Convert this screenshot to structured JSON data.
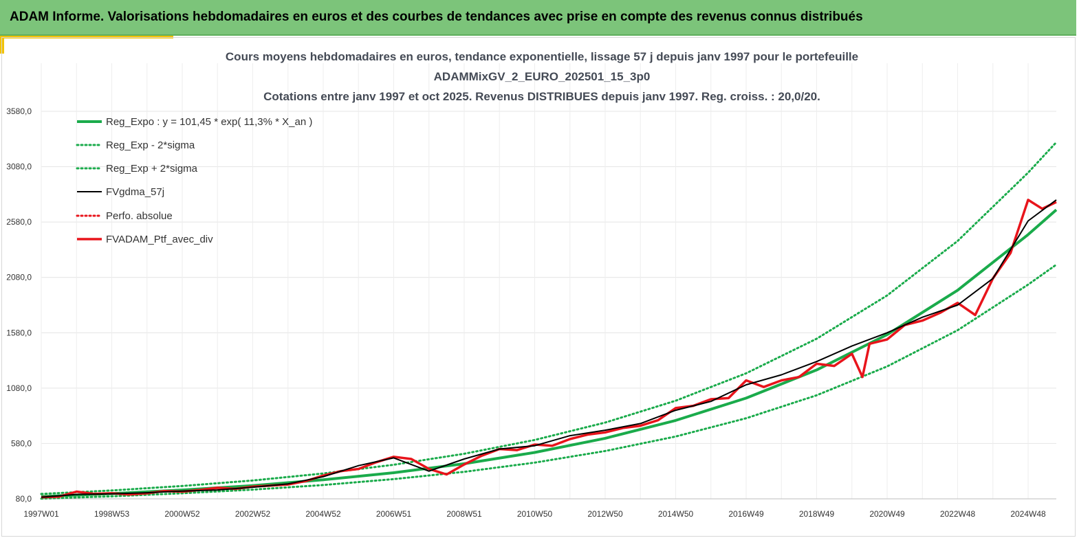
{
  "banner": {
    "title": "ADAM Informe. Valorisations hebdomadaires en euros et des courbes de tendances avec prise en compte des revenus connus distribués"
  },
  "colors": {
    "banner_bg": "#7cc47a",
    "accent": "#f2c200",
    "reg_expo": "#1aab4b",
    "portfolio": "#e8141b",
    "gdma": "#000000"
  },
  "chart_data": {
    "type": "line",
    "title_lines": [
      "Cours moyens hebdomadaires  en euros, tendance exponentielle, lissage 57 j depuis janv 1997 pour le portefeuille",
      "ADAMMixGV_2_EURO_202501_15_3p0",
      "Cotations  entre janv 1997 et oct 2025. Revenus DISTRIBUES depuis janv 1997. Reg. croiss. : 20,0/20."
    ],
    "xlabel": "",
    "ylabel": "",
    "xlim": [
      1997.0,
      2025.8
    ],
    "ylim": [
      80,
      3580
    ],
    "y_ticks": [
      80,
      580,
      1080,
      1580,
      2080,
      2580,
      3080,
      3580
    ],
    "y_tick_labels": [
      "80,0",
      "580,0",
      "1080,0",
      "1580,0",
      "2080,0",
      "2580,0",
      "3080,0",
      "3580,0"
    ],
    "x_ticks": [
      1997.0,
      1999.0,
      2001.0,
      2003.0,
      2005.0,
      2007.0,
      2009.0,
      2011.0,
      2013.0,
      2015.0,
      2017.0,
      2019.0,
      2021.0,
      2023.0,
      2025.0
    ],
    "x_tick_labels": [
      "1997W01",
      "1998W53",
      "2000W52",
      "2002W52",
      "2004W52",
      "2006W51",
      "2008W51",
      "2010W50",
      "2012W50",
      "2014W50",
      "2016W49",
      "2018W49",
      "2020W49",
      "2022W48",
      "2024W48"
    ],
    "grid": true,
    "legend_position": "top-left",
    "series": [
      {
        "name": "Reg_Expo : y = 101,45 * exp( 11,3% *  X_an )",
        "style": "solid-thick",
        "color": "#1aab4b",
        "x": [
          1997.0,
          1999.0,
          2001.0,
          2003.0,
          2005.0,
          2007.0,
          2009.0,
          2011.0,
          2013.0,
          2015.0,
          2017.0,
          2019.0,
          2021.0,
          2023.0,
          2025.0,
          2025.8
        ],
        "values": [
          101,
          127,
          160,
          200,
          252,
          316,
          397,
          499,
          627,
          788,
          990,
          1244,
          1563,
          1964,
          2467,
          2690
        ]
      },
      {
        "name": "Reg_Exp - 2*sigma",
        "style": "dotted",
        "color": "#1aab4b",
        "x": [
          1997.0,
          1999.0,
          2001.0,
          2003.0,
          2005.0,
          2007.0,
          2009.0,
          2011.0,
          2013.0,
          2015.0,
          2017.0,
          2019.0,
          2021.0,
          2023.0,
          2025.0,
          2025.8
        ],
        "values": [
          82,
          103,
          130,
          163,
          205,
          258,
          324,
          407,
          512,
          643,
          808,
          1015,
          1276,
          1603,
          2015,
          2195
        ]
      },
      {
        "name": "Reg_Exp + 2*sigma",
        "style": "dotted",
        "color": "#1aab4b",
        "x": [
          1997.0,
          1999.0,
          2001.0,
          2003.0,
          2005.0,
          2007.0,
          2009.0,
          2011.0,
          2013.0,
          2015.0,
          2017.0,
          2019.0,
          2021.0,
          2023.0,
          2025.0,
          2025.8
        ],
        "values": [
          124,
          156,
          196,
          246,
          309,
          388,
          487,
          612,
          769,
          966,
          1214,
          1526,
          1917,
          2409,
          3026,
          3300
        ]
      },
      {
        "name": "FVgdma_57j",
        "style": "solid",
        "color": "#000000",
        "x": [
          1997.0,
          1998.0,
          1999.0,
          2000.0,
          2001.0,
          2002.0,
          2003.0,
          2004.0,
          2005.0,
          2006.0,
          2007.0,
          2008.0,
          2009.0,
          2010.0,
          2011.0,
          2012.0,
          2013.0,
          2014.0,
          2015.0,
          2016.0,
          2017.0,
          2018.0,
          2019.0,
          2020.0,
          2021.0,
          2022.0,
          2023.0,
          2024.0,
          2025.0,
          2025.8
        ],
        "values": [
          95,
          120,
          125,
          135,
          150,
          160,
          185,
          215,
          280,
          380,
          450,
          330,
          440,
          530,
          560,
          650,
          700,
          760,
          880,
          960,
          1110,
          1200,
          1320,
          1460,
          1580,
          1720,
          1830,
          2070,
          2590,
          2780
        ]
      },
      {
        "name": "Perfo. absolue",
        "style": "dotted",
        "color": "#e8141b",
        "x": [],
        "values": []
      },
      {
        "name": "FVADAM_Ptf_avec_div",
        "style": "solid-thick",
        "color": "#e8141b",
        "x": [
          1997.0,
          1997.5,
          1998.0,
          1998.5,
          1999.0,
          1999.5,
          2000.0,
          2000.5,
          2001.0,
          2001.5,
          2002.0,
          2002.5,
          2003.0,
          2003.5,
          2004.0,
          2004.5,
          2005.0,
          2005.5,
          2006.0,
          2006.5,
          2007.0,
          2007.5,
          2008.0,
          2008.5,
          2009.0,
          2009.5,
          2010.0,
          2010.5,
          2011.0,
          2011.5,
          2012.0,
          2012.5,
          2013.0,
          2013.5,
          2014.0,
          2014.5,
          2015.0,
          2015.5,
          2016.0,
          2016.5,
          2017.0,
          2017.5,
          2018.0,
          2018.5,
          2019.0,
          2019.5,
          2020.0,
          2020.3,
          2020.5,
          2021.0,
          2021.5,
          2022.0,
          2022.5,
          2023.0,
          2023.5,
          2024.0,
          2024.5,
          2025.0,
          2025.4,
          2025.8
        ],
        "values": [
          95,
          100,
          145,
          125,
          130,
          120,
          130,
          150,
          145,
          160,
          180,
          170,
          190,
          200,
          210,
          240,
          290,
          330,
          350,
          410,
          460,
          440,
          350,
          300,
          390,
          470,
          530,
          520,
          570,
          560,
          620,
          660,
          680,
          720,
          740,
          790,
          900,
          920,
          980,
          990,
          1150,
          1090,
          1150,
          1180,
          1300,
          1280,
          1390,
          1180,
          1480,
          1520,
          1650,
          1690,
          1760,
          1850,
          1740,
          2070,
          2300,
          2780,
          2700,
          2760
        ]
      }
    ]
  }
}
